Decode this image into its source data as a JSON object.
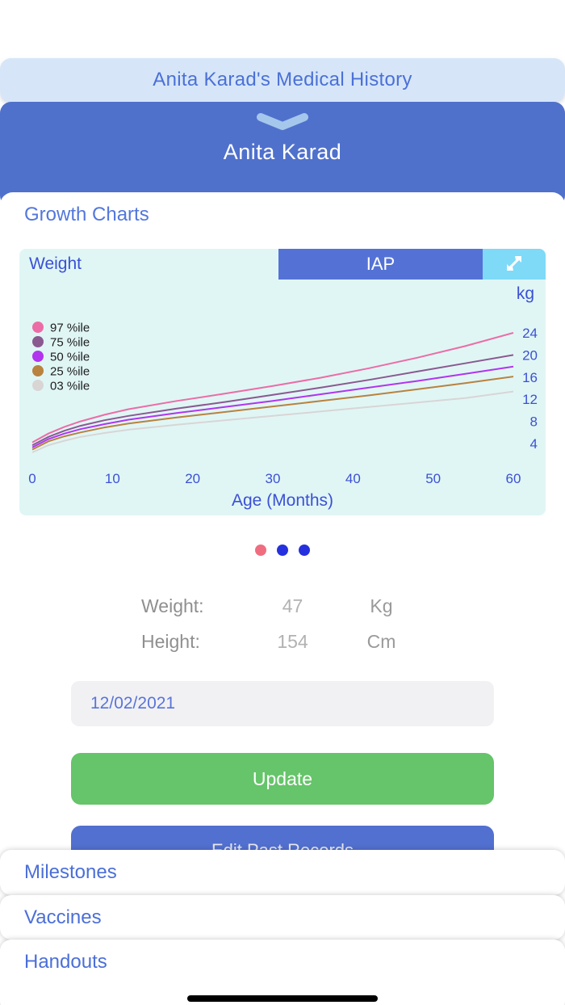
{
  "header": {
    "title": "Anita Karad's Medical History"
  },
  "patient": {
    "name": "Anita Karad",
    "chevron_icon": "chevron-down",
    "chevron_color": "#a5c7ec"
  },
  "growth": {
    "section_title": "Growth Charts",
    "metric_label": "Weight",
    "standard_button_label": "IAP",
    "expand_icon": "expand-diagonal-arrows",
    "unit_label": "kg"
  },
  "chart_data": {
    "type": "line",
    "title": "Weight",
    "xlabel": "Age (Months)",
    "ylabel": "kg",
    "xlim": [
      0,
      60
    ],
    "x_ticks": [
      0,
      10,
      20,
      30,
      40,
      50,
      60
    ],
    "y_ticks": [
      24,
      20,
      16,
      12,
      8,
      4
    ],
    "grid": false,
    "legend_position": "top-left",
    "x": [
      0,
      2,
      4,
      6,
      9,
      12,
      18,
      24,
      30,
      36,
      42,
      48,
      54,
      60
    ],
    "series": [
      {
        "name": "97 %ile",
        "color": "#ec6ca6",
        "values": [
          4.2,
          5.8,
          7.0,
          8.0,
          9.2,
          10.2,
          11.7,
          13.0,
          14.4,
          15.9,
          17.6,
          19.5,
          21.6,
          24.0
        ]
      },
      {
        "name": "75 %ile",
        "color": "#8a5990",
        "values": [
          3.7,
          5.2,
          6.3,
          7.2,
          8.2,
          9.0,
          10.3,
          11.5,
          12.8,
          14.1,
          15.5,
          17.0,
          18.5,
          20.0
        ]
      },
      {
        "name": "50 %ile",
        "color": "#b135ee",
        "values": [
          3.3,
          4.8,
          5.8,
          6.6,
          7.5,
          8.3,
          9.5,
          10.6,
          11.7,
          12.9,
          14.1,
          15.3,
          16.6,
          17.9
        ]
      },
      {
        "name": "25 %ile",
        "color": "#b9823f",
        "values": [
          2.9,
          4.4,
          5.3,
          6.0,
          6.9,
          7.6,
          8.7,
          9.7,
          10.7,
          11.7,
          12.7,
          13.8,
          14.9,
          16.1
        ]
      },
      {
        "name": "03 %ile",
        "color": "#d9d5d5",
        "values": [
          2.4,
          3.7,
          4.5,
          5.2,
          5.9,
          6.5,
          7.4,
          8.2,
          9.0,
          9.8,
          10.6,
          11.4,
          12.2,
          13.4
        ]
      }
    ],
    "axis_text_color": "#3b50d5",
    "legend_text_color": "#1c1c1c",
    "background_color": "#e0f6f5"
  },
  "pagination_dots": [
    {
      "color": "#ef6d7f",
      "active": true
    },
    {
      "color": "#2531de",
      "active": false
    },
    {
      "color": "#2531de",
      "active": false
    }
  ],
  "measurements": {
    "rows": [
      {
        "label": "Weight:",
        "value": "47",
        "unit": "Kg"
      },
      {
        "label": "Height:",
        "value": "154",
        "unit": "Cm"
      }
    ]
  },
  "form": {
    "date_value": "12/02/2021",
    "update_label": "Update",
    "edit_past_label": "Edit Past Records"
  },
  "accordion": {
    "items": [
      {
        "label": "Milestones"
      },
      {
        "label": "Vaccines"
      },
      {
        "label": "Handouts"
      }
    ]
  },
  "colors": {
    "header_bg": "#d6e6f8",
    "header_text": "#4b70d6",
    "patient_card_bg": "#4f71cc",
    "iap_button_bg": "#5472d6",
    "expand_button_bg": "#7edaf7",
    "update_button_bg": "#66c46a",
    "edit_button_bg": "#5270cf",
    "date_field_bg": "#f1f1f4",
    "accordion_text": "#4b6fd8"
  }
}
